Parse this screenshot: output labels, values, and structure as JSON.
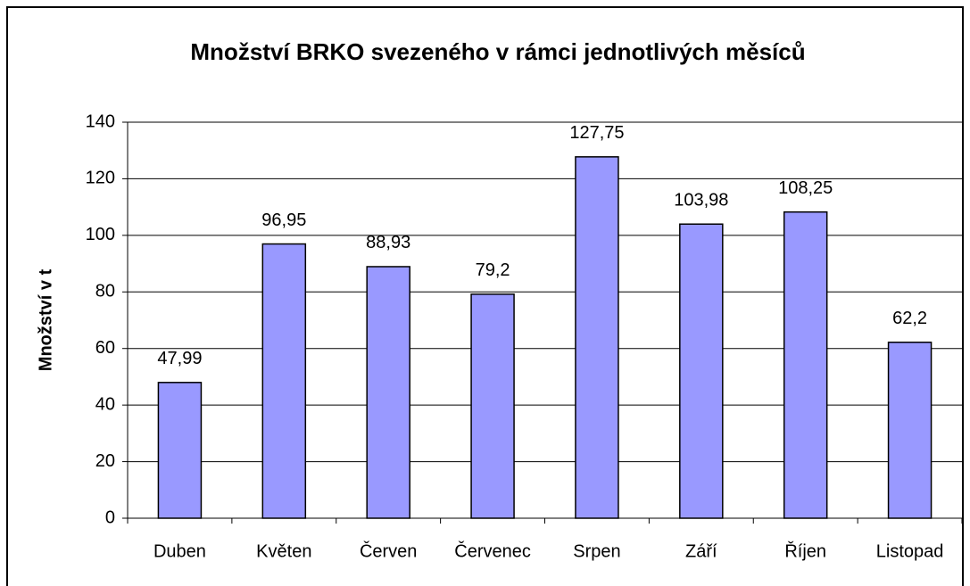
{
  "chart_data": {
    "type": "bar",
    "title": "Množství BRKO svezeného v rámci jednotlivých měsíců",
    "y_label": "Množství v t",
    "categories": [
      "Duben",
      "Květen",
      "Červen",
      "Červenec",
      "Srpen",
      "Září",
      "Říjen",
      "Listopad"
    ],
    "values": [
      47.99,
      96.95,
      88.93,
      79.2,
      127.75,
      103.98,
      108.25,
      62.2
    ],
    "value_labels": [
      "47,99",
      "96,95",
      "88,93",
      "79,2",
      "127,75",
      "103,98",
      "108,25",
      "62,2"
    ],
    "color": "#9999ff",
    "ylim": [
      0,
      140
    ],
    "yticks": [
      0,
      20,
      40,
      60,
      80,
      100,
      120,
      140
    ],
    "grid": true
  }
}
